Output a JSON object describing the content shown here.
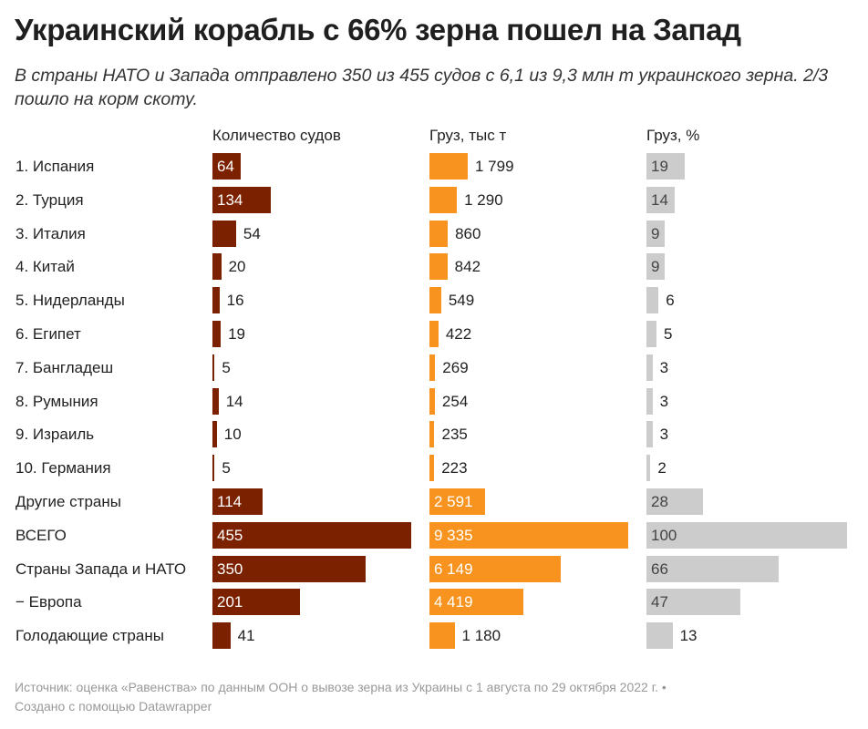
{
  "header": {
    "title": "Украинский корабль с 66% зерна пошел на Запад",
    "subtitle": "В страны НАТО и Запада отправлено 350 из 455 судов с 6,1 из 9,3 млн т украинского зерна. 2/3 пошло на корм скоту."
  },
  "chart_data": {
    "type": "bar",
    "orientation": "horizontal",
    "categories": [
      "1. Испания",
      "2. Турция",
      "3. Италия",
      "4. Китай",
      "5. Нидерланды",
      "6. Египет",
      "7. Бангладеш",
      "8. Румыния",
      "9. Израиль",
      "10. Германия",
      "Другие страны",
      "ВСЕГО",
      "Страны Запада и НАТО",
      "− Европа",
      "Голодающие страны"
    ],
    "series": [
      {
        "name": "Количество судов",
        "color": "#7b2100",
        "values": [
          64,
          134,
          54,
          20,
          16,
          19,
          5,
          14,
          10,
          5,
          114,
          455,
          350,
          201,
          41
        ],
        "labels": [
          "64",
          "134",
          "54",
          "20",
          "16",
          "19",
          "5",
          "14",
          "10",
          "5",
          "114",
          "455",
          "350",
          "201",
          "41"
        ],
        "max": 455
      },
      {
        "name": "Груз, тыс т",
        "color": "#f7931e",
        "values": [
          1799,
          1290,
          860,
          842,
          549,
          422,
          269,
          254,
          235,
          223,
          2591,
          9335,
          6149,
          4419,
          1180
        ],
        "labels": [
          "1 799",
          "1 290",
          "860",
          "842",
          "549",
          "422",
          "269",
          "254",
          "235",
          "223",
          "2 591",
          "9 335",
          "6 149",
          "4 419",
          "1 180"
        ],
        "max": 9335
      },
      {
        "name": "Груз, %",
        "color": "#cccccc",
        "values": [
          19,
          14,
          9,
          9,
          6,
          5,
          3,
          3,
          3,
          2,
          28,
          100,
          66,
          47,
          13
        ],
        "labels": [
          "19",
          "14",
          "9",
          "9",
          "6",
          "5",
          "3",
          "3",
          "3",
          "2",
          "28",
          "100",
          "66",
          "47",
          "13"
        ],
        "max": 100
      }
    ]
  },
  "footer": {
    "source": "Источник: оценка «Равенства» по данным ООН о вывозе зерна из Украины с 1 августа по 29 октября 2022 г. •",
    "credit": "Создано с помощью Datawrapper"
  }
}
